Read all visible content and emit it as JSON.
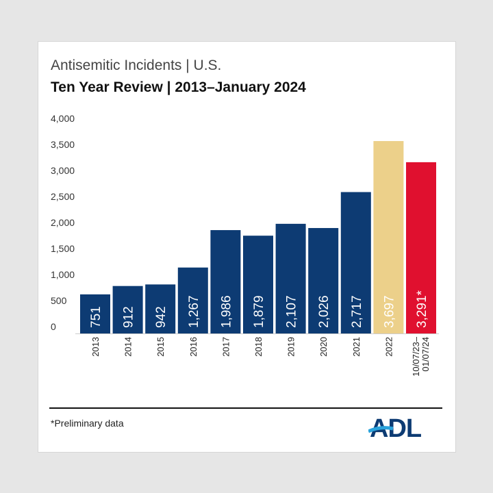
{
  "chart_data": {
    "type": "bar",
    "title": "Antisemitic Incidents | U.S.",
    "subtitle": "Ten Year Review | 2013–January 2024",
    "categories": [
      "2013",
      "2014",
      "2015",
      "2016",
      "2017",
      "2018",
      "2019",
      "2020",
      "2021",
      "2022",
      "10/07/23–|01/07/24"
    ],
    "values": [
      751,
      912,
      942,
      1267,
      1986,
      1879,
      2107,
      2026,
      2717,
      3697,
      3291
    ],
    "data_labels": [
      "751",
      "912",
      "942",
      "1,267",
      "1,986",
      "1,879",
      "2,107",
      "2,026",
      "2,717",
      "3,697",
      "3,291*"
    ],
    "colors": [
      "#0d3b73",
      "#0d3b73",
      "#0d3b73",
      "#0d3b73",
      "#0d3b73",
      "#0d3b73",
      "#0d3b73",
      "#0d3b73",
      "#0d3b73",
      "#ecd08a",
      "#e0102f"
    ],
    "ylim": [
      0,
      4000
    ],
    "yticks": [
      0,
      500,
      1000,
      1500,
      2000,
      2500,
      3000,
      3500,
      4000
    ],
    "ytick_labels": [
      "0",
      "500",
      "1,000",
      "1,500",
      "2,000",
      "2,500",
      "3,000",
      "3,500",
      "4,000"
    ],
    "grid": false,
    "xlabel": "",
    "ylabel": ""
  },
  "footnote": "*Preliminary data",
  "logo": "ADL"
}
